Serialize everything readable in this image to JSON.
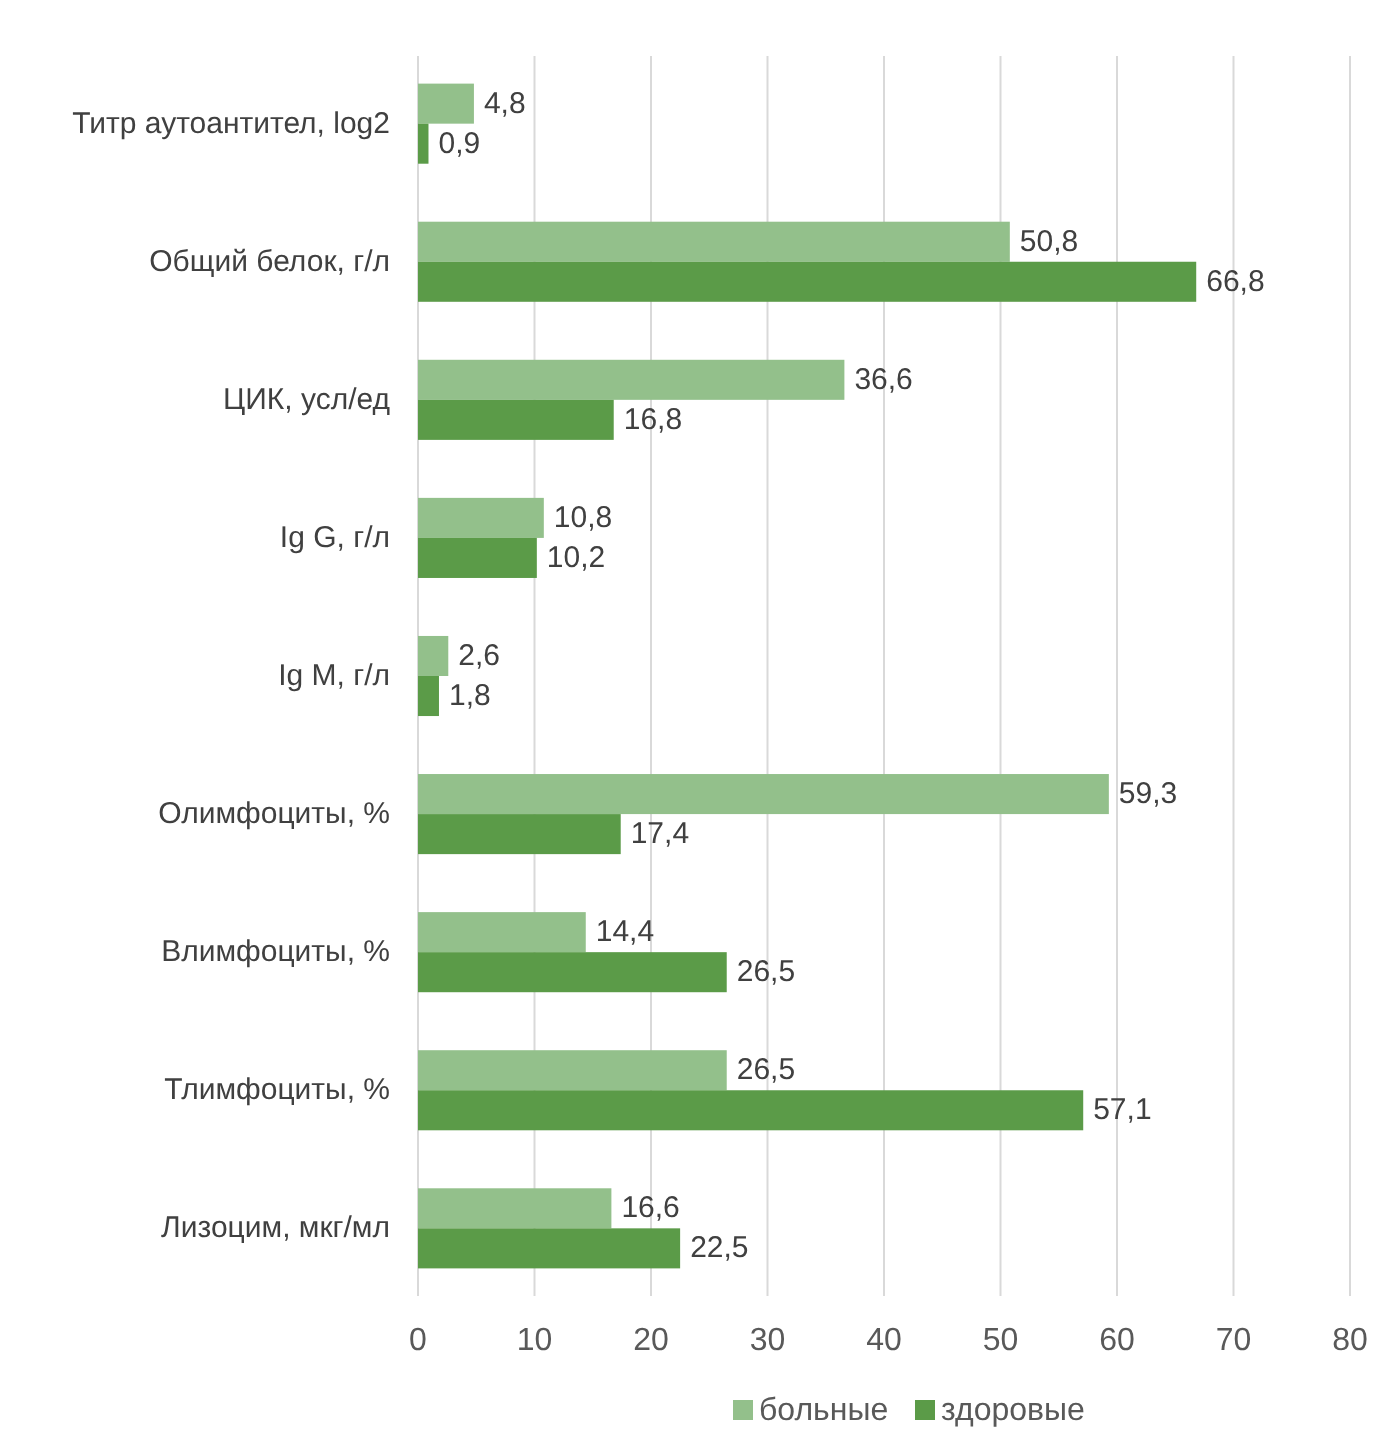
{
  "chart_data": {
    "type": "bar",
    "orientation": "horizontal",
    "categories": [
      "Титр аутоантител, log2",
      "Общий белок, г/л",
      "ЦИК, усл/ед",
      "Ig G, г/л",
      "Ig M, г/л",
      "Олимфоциты, %",
      "Влимфоциты, %",
      "Тлимфоциты, %",
      "Лизоцим, мкг/мл"
    ],
    "series": [
      {
        "name": "больные",
        "color": "#93c08b",
        "values": [
          4.8,
          50.8,
          36.6,
          10.8,
          2.6,
          59.3,
          14.4,
          26.5,
          16.6
        ],
        "value_labels": [
          "4,8",
          "50,8",
          "36,6",
          "10,8",
          "2,6",
          "59,3",
          "14,4",
          "26,5",
          "16,6"
        ]
      },
      {
        "name": "здоровые",
        "color": "#5b9b48",
        "values": [
          0.9,
          66.8,
          16.8,
          10.2,
          1.8,
          17.4,
          26.5,
          57.1,
          22.5
        ],
        "value_labels": [
          "0,9",
          "66,8",
          "16,8",
          "10,2",
          "1,8",
          "17,4",
          "26,5",
          "57,1",
          "22,5"
        ]
      }
    ],
    "xlim": [
      0,
      80
    ],
    "xticks": [
      0,
      10,
      20,
      30,
      40,
      50,
      60,
      70,
      80
    ],
    "grid": "x",
    "legend": "bottom"
  }
}
